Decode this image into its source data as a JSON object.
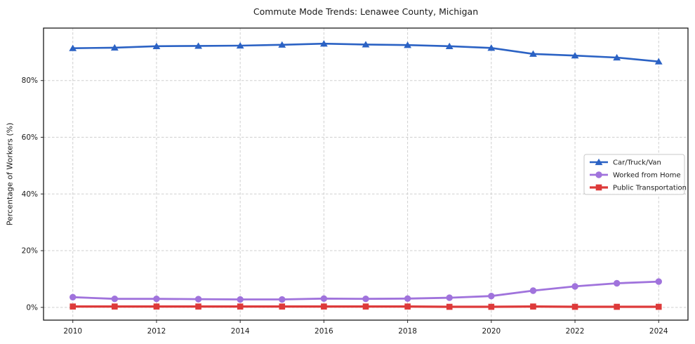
{
  "figure": {
    "title": "Commute Mode Trends: Lenawee County, Michigan"
  },
  "chart_data": {
    "type": "line",
    "title": "Commute Mode Trends: Lenawee County, Michigan",
    "xlabel": "",
    "ylabel": "Percentage of Workers (%)",
    "x": [
      2010,
      2011,
      2012,
      2013,
      2014,
      2015,
      2016,
      2017,
      2018,
      2019,
      2020,
      2021,
      2022,
      2023,
      2024
    ],
    "series": [
      {
        "name": "Car/Truck/Van",
        "color": "#2b62c4",
        "marker": "triangle",
        "line_width": 2.6,
        "values": [
          91.4,
          91.6,
          92.1,
          92.2,
          92.3,
          92.6,
          93.0,
          92.7,
          92.5,
          92.1,
          91.5,
          89.4,
          88.8,
          88.1,
          86.7
        ]
      },
      {
        "name": "Worked from Home",
        "color": "#a073dc",
        "marker": "circle",
        "line_width": 2.8,
        "values": [
          3.6,
          3.0,
          3.0,
          2.9,
          2.8,
          2.8,
          3.1,
          3.0,
          3.1,
          3.4,
          4.0,
          5.9,
          7.4,
          8.5,
          9.1
        ]
      },
      {
        "name": "Public Transportation",
        "color": "#dd3a3a",
        "marker": "square",
        "line_width": 3.2,
        "values": [
          0.3,
          0.3,
          0.3,
          0.3,
          0.3,
          0.3,
          0.3,
          0.3,
          0.3,
          0.2,
          0.2,
          0.3,
          0.2,
          0.2,
          0.2
        ]
      }
    ],
    "xticks": [
      {
        "value": 2010,
        "label": "2010"
      },
      {
        "value": 2012,
        "label": "2012"
      },
      {
        "value": 2014,
        "label": "2014"
      },
      {
        "value": 2016,
        "label": "2016"
      },
      {
        "value": 2018,
        "label": "2018"
      },
      {
        "value": 2020,
        "label": "2020"
      },
      {
        "value": 2022,
        "label": "2022"
      },
      {
        "value": 2024,
        "label": "2024"
      }
    ],
    "yticks": [
      {
        "value": 0,
        "label": "0%"
      },
      {
        "value": 20,
        "label": "20%"
      },
      {
        "value": 40,
        "label": "40%"
      },
      {
        "value": 60,
        "label": "60%"
      },
      {
        "value": 80,
        "label": "80%"
      }
    ],
    "xlim": [
      2009.3,
      2024.7
    ],
    "ylim": [
      -4.5,
      98.5
    ],
    "grid": true,
    "legend_position": "center-right"
  }
}
